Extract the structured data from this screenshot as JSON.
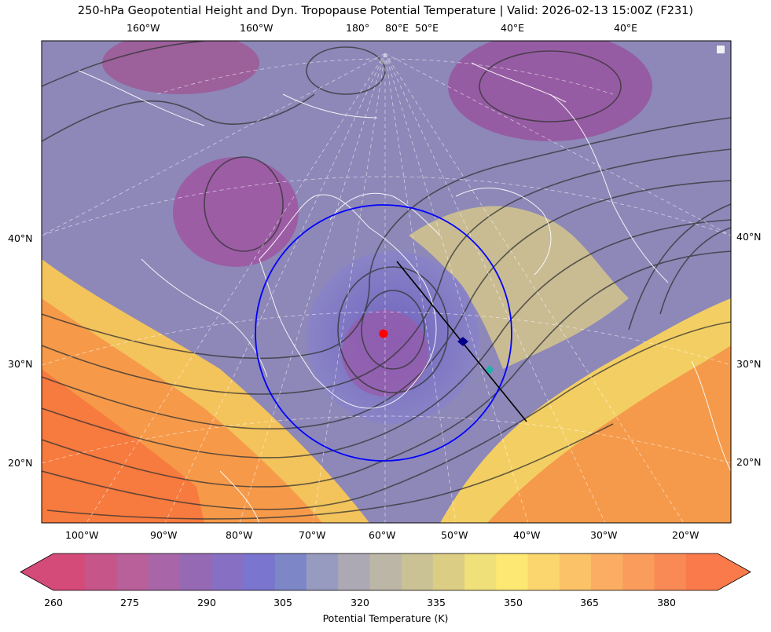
{
  "title": "250-hPa Geopotential Height and Dyn. Tropopause Potential Temperature   |  Valid: 2026-02-13 15:00Z (F231)",
  "top_lon_labels": [
    "160°W",
    "160°W",
    "180°",
    "80°E",
    "50°E",
    "40°E",
    "40°E"
  ],
  "bottom_lon_labels": [
    "100°W",
    "90°W",
    "80°W",
    "70°W",
    "60°W",
    "50°W",
    "40°W",
    "30°W",
    "20°W"
  ],
  "left_lat_labels": [
    "40°N",
    "30°N",
    "20°N"
  ],
  "right_lat_labels": [
    "40°N",
    "30°N",
    "20°N"
  ],
  "colorbar": {
    "label": "Potential Temperature (K)",
    "ticks": [
      "260",
      "275",
      "290",
      "305",
      "320",
      "335",
      "350",
      "365",
      "380"
    ],
    "colors": [
      "#d44a78",
      "#c6558a",
      "#b95f99",
      "#a866a8",
      "#9669b4",
      "#8770c3",
      "#7a75cf",
      "#7d86c6",
      "#979bbf",
      "#aca8b4",
      "#bcb6a6",
      "#cac295",
      "#dccd85",
      "#efe07a",
      "#fde873",
      "#fbd56e",
      "#fbc268",
      "#fbae63",
      "#fa9c5c",
      "#fa8a55",
      "#fa7a4c"
    ]
  },
  "annotations": {
    "circle_color": "#0000ff",
    "center_marker_color": "#ff0000",
    "point_marker_color": "#00008b",
    "point_marker2_color": "#20b2aa",
    "cross_section_color": "#000000"
  }
}
